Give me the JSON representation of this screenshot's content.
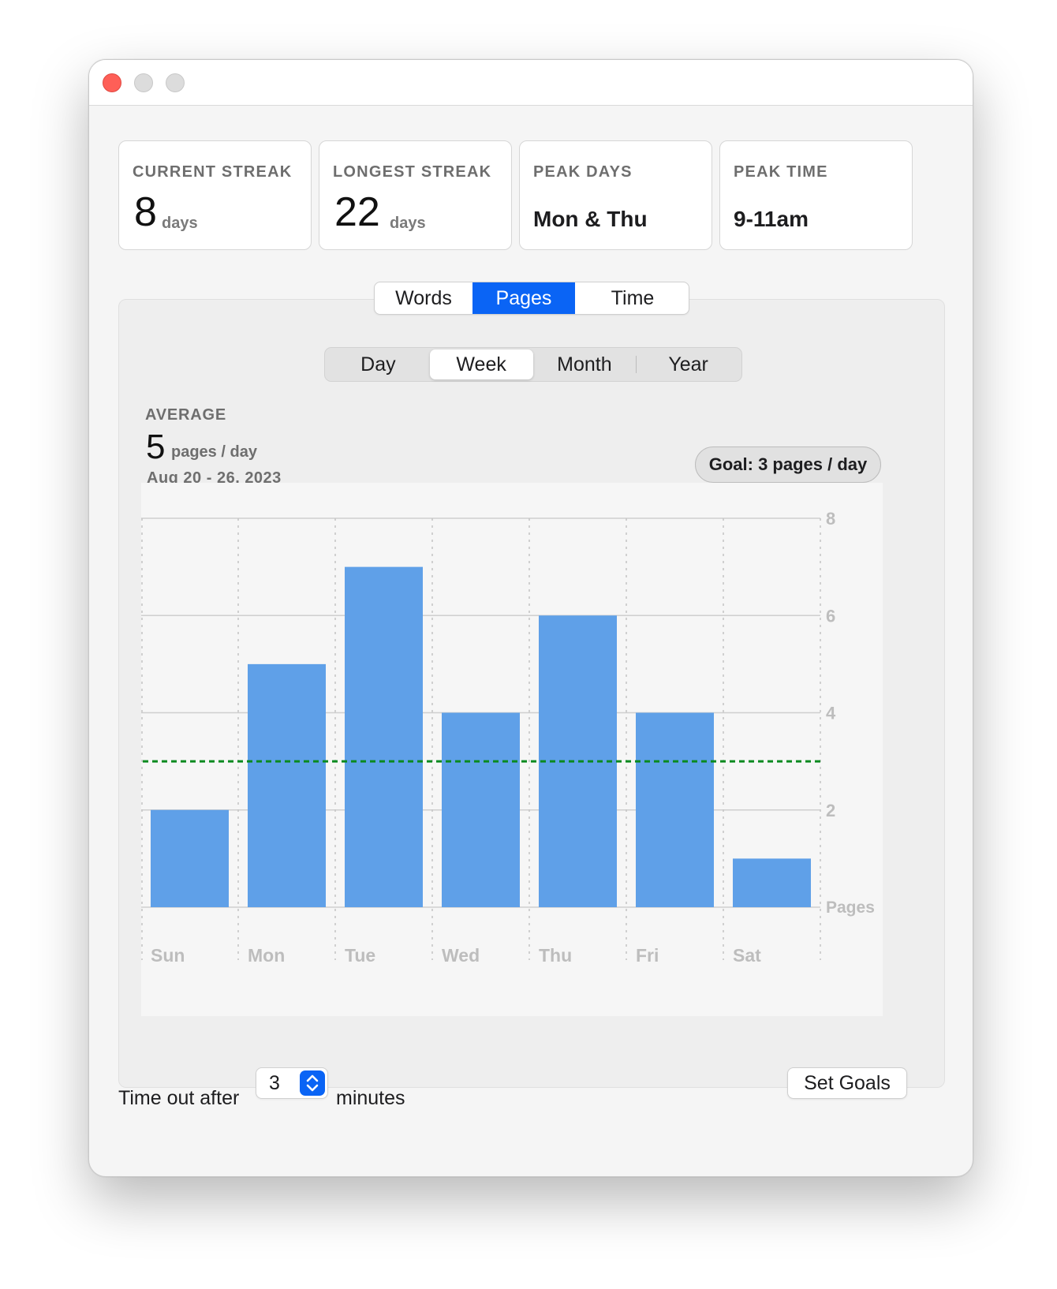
{
  "window": {
    "controls": [
      "close",
      "minimize",
      "maximize"
    ]
  },
  "stats": [
    {
      "label": "CURRENT STREAK",
      "value": "8",
      "unit": "days"
    },
    {
      "label": "LONGEST STREAK",
      "value": "22",
      "unit": "days"
    },
    {
      "label": "PEAK DAYS",
      "text": "Mon & Thu"
    },
    {
      "label": "PEAK TIME",
      "text": "9-11am"
    }
  ],
  "metric_tabs": {
    "items": [
      "Words",
      "Pages",
      "Time"
    ],
    "selected": "Pages"
  },
  "period_tabs": {
    "items": [
      "Day",
      "Week",
      "Month",
      "Year"
    ],
    "selected": "Week"
  },
  "average": {
    "label": "AVERAGE",
    "value": "5",
    "unit": "pages / day",
    "range": "Aug 20 - 26, 2023"
  },
  "goal": {
    "label": "Goal: 3 pages / day"
  },
  "chart_data": {
    "type": "bar",
    "categories": [
      "Sun",
      "Mon",
      "Tue",
      "Wed",
      "Thu",
      "Fri",
      "Sat"
    ],
    "values": [
      2,
      5,
      7,
      4,
      6,
      4,
      1
    ],
    "ylabel": "Pages",
    "ylim": [
      0,
      8
    ],
    "yticks": [
      2,
      4,
      6,
      8
    ],
    "goal_line": 3,
    "bar_color": "#5fa0e8",
    "goal_color": "#0a8a1f",
    "grid": true
  },
  "footer": {
    "timeout_prefix": "Time out after",
    "timeout_value": "3",
    "timeout_suffix": "minutes",
    "set_goals_label": "Set Goals"
  },
  "colors": {
    "accent": "#0a64f5",
    "close": "#fe5f57"
  }
}
